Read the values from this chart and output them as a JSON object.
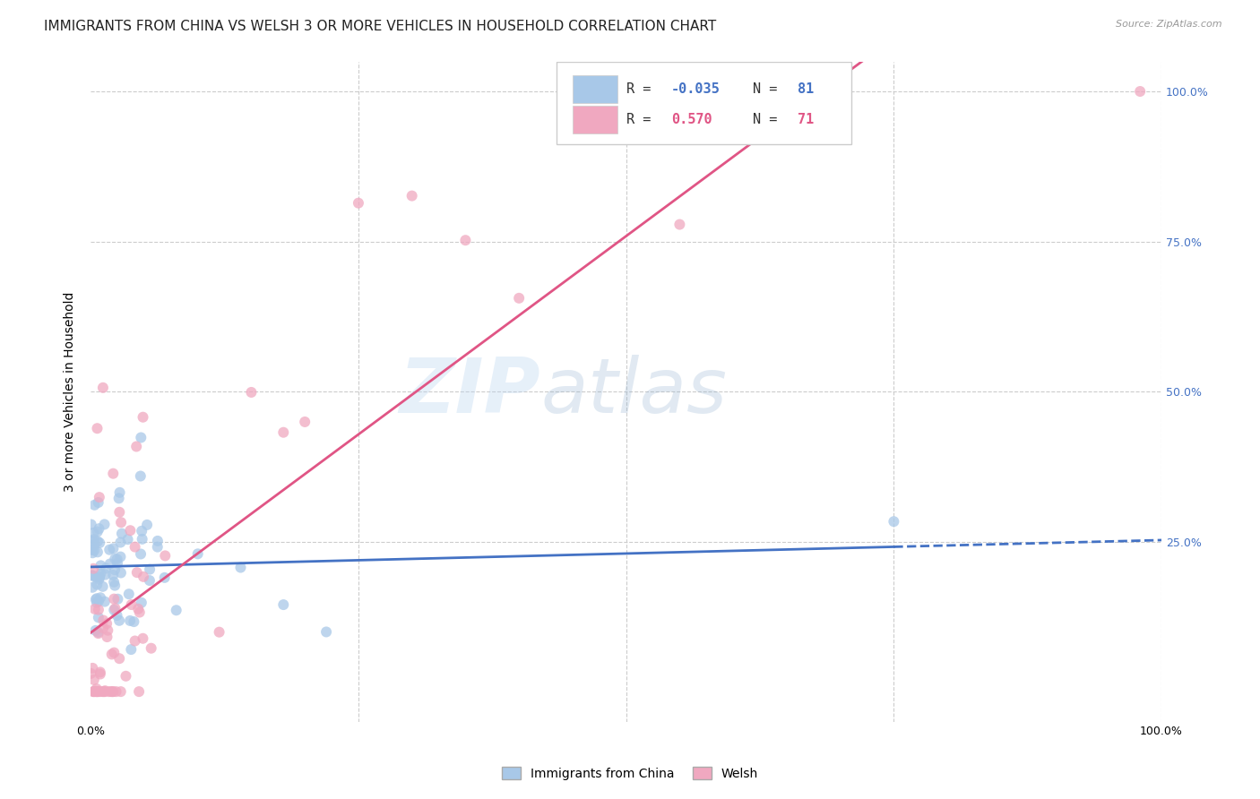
{
  "title": "IMMIGRANTS FROM CHINA VS WELSH 3 OR MORE VEHICLES IN HOUSEHOLD CORRELATION CHART",
  "source": "Source: ZipAtlas.com",
  "ylabel": "3 or more Vehicles in Household",
  "xlim": [
    0,
    100
  ],
  "ylim": [
    -5,
    105
  ],
  "watermark_zip": "ZIP",
  "watermark_atlas": "atlas",
  "blue_line_color": "#4472c4",
  "pink_line_color": "#e05585",
  "blue_scatter_color": "#a8c8e8",
  "pink_scatter_color": "#f0a8c0",
  "grid_color": "#cccccc",
  "background_color": "#ffffff",
  "title_fontsize": 11,
  "axis_label_fontsize": 10,
  "tick_fontsize": 9,
  "legend_fontsize": 11,
  "r_blue": "-0.035",
  "n_blue": "81",
  "r_pink": "0.570",
  "n_pink": "71"
}
